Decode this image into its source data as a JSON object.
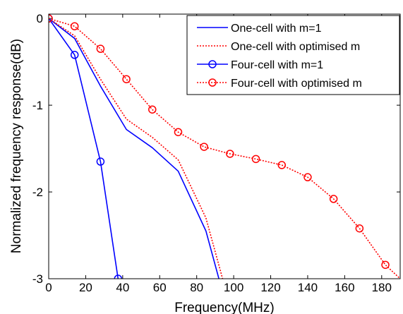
{
  "chart_data": {
    "type": "line",
    "title": "",
    "xlabel": "Frequency(MHz)",
    "ylabel": "Normalized frequency response(dB)",
    "xlim": [
      0,
      190
    ],
    "ylim": [
      -3,
      0.05
    ],
    "xticks": [
      "0",
      "20",
      "40",
      "60",
      "80",
      "100",
      "120",
      "140",
      "160",
      "180"
    ],
    "yticks": [
      "0",
      "-1",
      "-2",
      "-3"
    ],
    "grid": false,
    "legend_position": "top-right",
    "series": [
      {
        "name": "One-cell with m=1",
        "color": "#0000ff",
        "line_style": "solid",
        "marker": "none",
        "x": [
          0,
          14,
          28,
          42,
          56,
          70,
          85,
          92
        ],
        "y": [
          0,
          -0.23,
          -0.78,
          -1.28,
          -1.49,
          -1.76,
          -2.45,
          -3.0
        ]
      },
      {
        "name": "One-cell with optimised m",
        "color": "#ff0000",
        "line_style": "dotted",
        "marker": "none",
        "x": [
          0,
          14,
          28,
          42,
          56,
          70,
          85,
          94
        ],
        "y": [
          0,
          -0.2,
          -0.7,
          -1.16,
          -1.37,
          -1.63,
          -2.3,
          -3.0
        ]
      },
      {
        "name": "Four-cell with m=1",
        "color": "#0000ff",
        "line_style": "solid",
        "marker": "circle",
        "x": [
          0,
          14,
          28,
          37.5
        ],
        "y": [
          0,
          -0.42,
          -1.65,
          -3.0
        ]
      },
      {
        "name": "Four-cell with optimised m",
        "color": "#ff0000",
        "line_style": "dotted",
        "marker": "circle",
        "x": [
          0,
          14,
          28,
          42,
          56,
          70,
          84,
          98,
          112,
          126,
          140,
          154,
          168,
          182,
          190
        ],
        "y": [
          0,
          -0.09,
          -0.35,
          -0.7,
          -1.05,
          -1.31,
          -1.48,
          -1.56,
          -1.62,
          -1.69,
          -1.83,
          -2.08,
          -2.42,
          -2.84,
          -3.0
        ],
        "marker_count": 14
      }
    ]
  }
}
